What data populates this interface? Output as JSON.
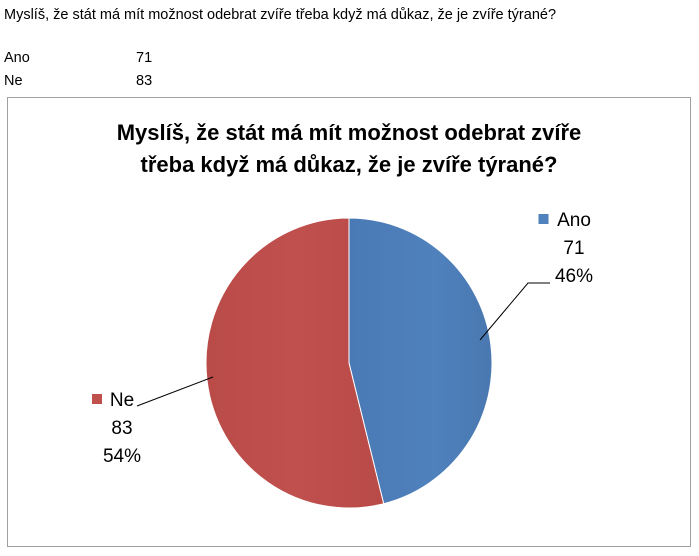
{
  "table": {
    "question": "Myslíš, že stát má mít možnost odebrat zvíře třeba když má důkaz, že je zvíře týrané?",
    "rows": [
      {
        "label": "Ano",
        "value": "71"
      },
      {
        "label": "Ne",
        "value": "83"
      }
    ]
  },
  "chart_data": {
    "type": "pie",
    "title_lines": [
      "Myslíš, že stát má mít možnost odebrat zvíře",
      "třeba když má důkaz, že je zvíře týrané?"
    ],
    "categories": [
      "Ano",
      "Ne"
    ],
    "values": [
      71,
      83
    ],
    "percent_labels": [
      "46%",
      "54%"
    ],
    "colors": [
      "#4f81bd",
      "#c0504d"
    ],
    "legend_position": "none (labels beside slices)"
  }
}
